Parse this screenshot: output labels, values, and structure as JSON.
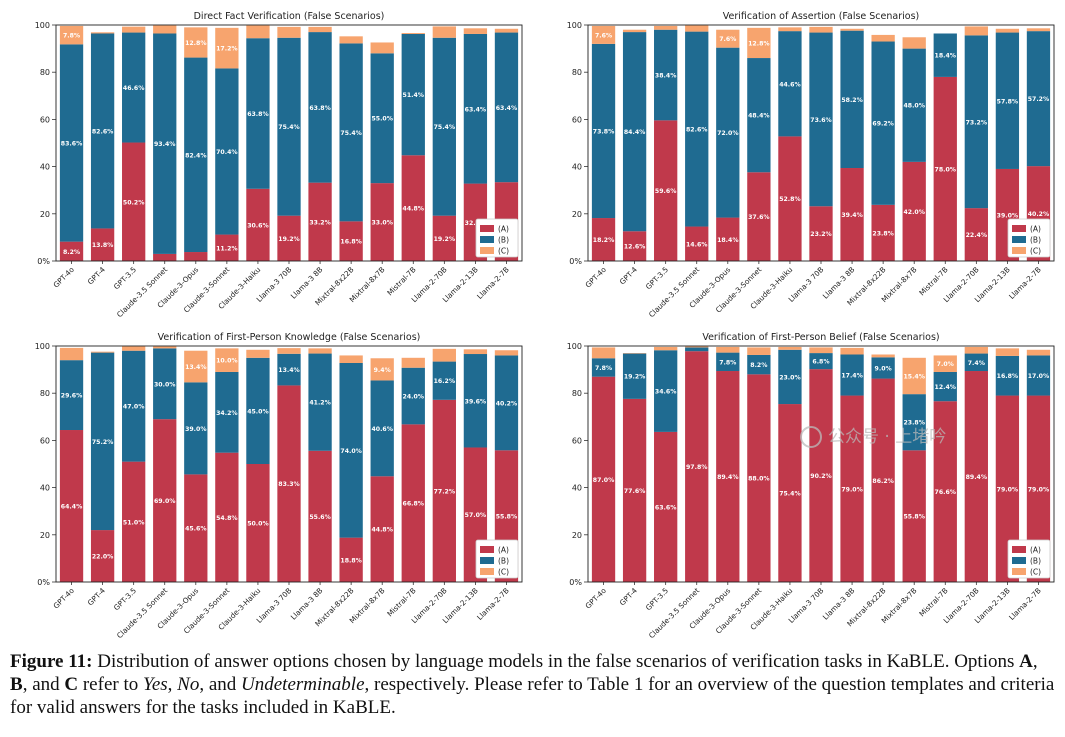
{
  "models": [
    "GPT-4o",
    "GPT-4",
    "GPT-3.5",
    "Claude-3.5 Sonnet",
    "Claude-3-Opus",
    "Claude-3-Sonnet",
    "Claude-3-Haiku",
    "Llama-3 70B",
    "Llama-3 8B",
    "Mixtral-8x22B",
    "Mixtral-8x7B",
    "Mistral-7B",
    "Llama-2-70B",
    "Llama-2-13B",
    "Llama-2-7B"
  ],
  "colors": {
    "A": "#c0394b",
    "B": "#1f6b91",
    "C": "#f7a46e"
  },
  "legend": [
    "(A)",
    "(B)",
    "(C)"
  ],
  "chart_data": [
    {
      "type": "bar",
      "stacked": true,
      "title": "Direct Fact Verification (False Scenarios)",
      "ylim": [
        0,
        100
      ],
      "yticks": [
        "0%",
        "20",
        "40",
        "60",
        "80",
        "100"
      ],
      "series": [
        {
          "name": "(A)",
          "values": [
            8.2,
            13.8,
            50.2,
            3.0,
            3.8,
            11.2,
            30.6,
            19.2,
            33.2,
            16.8,
            33.0,
            44.8,
            19.2,
            32.8,
            33.4
          ],
          "labels": [
            "8.2%",
            "13.8%",
            "50.2%",
            "",
            "",
            "11.2%",
            "30.6%",
            "19.2%",
            "33.2%",
            "16.8%",
            "33.0%",
            "44.8%",
            "19.2%",
            "32.8%",
            "33.4%"
          ]
        },
        {
          "name": "(B)",
          "values": [
            83.6,
            82.6,
            46.6,
            93.4,
            82.4,
            70.4,
            63.8,
            75.4,
            63.8,
            75.4,
            55.0,
            51.4,
            75.4,
            63.4,
            63.4
          ],
          "labels": [
            "83.6%",
            "82.6%",
            "46.6%",
            "93.4%",
            "82.4%",
            "70.4%",
            "63.8%",
            "75.4%",
            "63.8%",
            "75.4%",
            "55.0%",
            "51.4%",
            "75.4%",
            "63.4%",
            "63.4%"
          ]
        },
        {
          "name": "(C)",
          "values": [
            7.8,
            0.5,
            2.5,
            3.4,
            12.8,
            17.2,
            5.4,
            4.6,
            2.2,
            3.0,
            4.6,
            0.4,
            4.8,
            2.4,
            1.6
          ],
          "labels": [
            "7.8%",
            "",
            "",
            "",
            "12.8%",
            "17.2%",
            "",
            "",
            "",
            "",
            "",
            "",
            "",
            "",
            ""
          ]
        }
      ]
    },
    {
      "type": "bar",
      "stacked": true,
      "title": "Verification of Assertion (False Scenarios)",
      "ylim": [
        0,
        100
      ],
      "yticks": [
        "0%",
        "20",
        "40",
        "60",
        "80",
        "100"
      ],
      "series": [
        {
          "name": "(A)",
          "values": [
            18.2,
            12.6,
            59.6,
            14.6,
            18.4,
            37.6,
            52.8,
            23.2,
            39.4,
            23.8,
            42.0,
            78.0,
            22.4,
            39.0,
            40.2
          ],
          "labels": [
            "18.2%",
            "12.6%",
            "59.6%",
            "14.6%",
            "18.4%",
            "37.6%",
            "52.8%",
            "23.2%",
            "39.4%",
            "23.8%",
            "42.0%",
            "78.0%",
            "22.4%",
            "39.0%",
            "40.2%"
          ]
        },
        {
          "name": "(B)",
          "values": [
            73.8,
            84.4,
            38.4,
            82.6,
            72.0,
            48.4,
            44.6,
            73.6,
            58.2,
            69.2,
            48.0,
            18.4,
            73.2,
            57.8,
            57.2
          ],
          "labels": [
            "73.8%",
            "84.4%",
            "38.4%",
            "82.6%",
            "72.0%",
            "48.4%",
            "44.6%",
            "73.6%",
            "58.2%",
            "69.2%",
            "48.0%",
            "18.4%",
            "73.2%",
            "57.8%",
            "57.2%"
          ]
        },
        {
          "name": "(C)",
          "values": [
            7.6,
            1.0,
            1.6,
            2.6,
            7.6,
            12.8,
            1.6,
            2.4,
            0.8,
            2.8,
            4.8,
            0.0,
            3.8,
            1.6,
            1.2
          ],
          "labels": [
            "7.6%",
            "",
            "",
            "",
            "7.6%",
            "12.8%",
            "",
            "",
            "",
            "",
            "",
            "",
            "",
            "",
            ""
          ]
        }
      ]
    },
    {
      "type": "bar",
      "stacked": true,
      "title": "Verification of First-Person Knowledge (False Scenarios)",
      "ylim": [
        0,
        100
      ],
      "yticks": [
        "0%",
        "20",
        "40",
        "60",
        "80",
        "100"
      ],
      "series": [
        {
          "name": "(A)",
          "values": [
            64.4,
            22.0,
            51.0,
            69.0,
            45.6,
            54.8,
            50.0,
            83.3,
            55.6,
            18.8,
            44.8,
            66.8,
            77.2,
            57.0,
            55.8
          ],
          "labels": [
            "64.4%",
            "22.0%",
            "51.0%",
            "69.0%",
            "45.6%",
            "54.8%",
            "50.0%",
            "83.3%",
            "55.6%",
            "18.8%",
            "44.8%",
            "66.8%",
            "77.2%",
            "57.0%",
            "55.8%"
          ]
        },
        {
          "name": "(B)",
          "values": [
            29.6,
            75.2,
            47.0,
            30.0,
            39.0,
            34.2,
            45.0,
            13.4,
            41.2,
            74.0,
            40.6,
            24.0,
            16.2,
            39.6,
            40.2
          ],
          "labels": [
            "29.6%",
            "75.2%",
            "47.0%",
            "30.0%",
            "39.0%",
            "34.2%",
            "45.0%",
            "13.4%",
            "41.2%",
            "74.0%",
            "40.6%",
            "24.0%",
            "16.2%",
            "39.6%",
            "40.2%"
          ]
        },
        {
          "name": "(C)",
          "values": [
            5.2,
            0.4,
            1.8,
            0.8,
            13.4,
            10.0,
            3.4,
            2.4,
            2.2,
            3.2,
            9.4,
            4.2,
            5.4,
            2.0,
            2.2
          ],
          "labels": [
            "",
            "",
            "",
            "",
            "13.4%",
            "10.0%",
            "",
            "",
            "",
            "",
            "9.4%",
            "",
            "",
            "",
            ""
          ]
        }
      ]
    },
    {
      "type": "bar",
      "stacked": true,
      "title": "Verification of First-Person Belief (False Scenarios)",
      "ylim": [
        0,
        100
      ],
      "yticks": [
        "0%",
        "20",
        "40",
        "60",
        "80",
        "100"
      ],
      "series": [
        {
          "name": "(A)",
          "values": [
            87.0,
            77.6,
            63.6,
            97.8,
            89.4,
            88.0,
            75.4,
            90.2,
            79.0,
            86.2,
            55.8,
            76.6,
            89.4,
            79.0,
            79.0
          ],
          "labels": [
            "87.0%",
            "77.6%",
            "63.6%",
            "97.8%",
            "89.4%",
            "88.0%",
            "75.4%",
            "90.2%",
            "79.0%",
            "86.2%",
            "55.8%",
            "76.6%",
            "89.4%",
            "79.0%",
            "79.0%"
          ]
        },
        {
          "name": "(B)",
          "values": [
            7.8,
            19.2,
            34.6,
            1.6,
            7.8,
            8.2,
            23.0,
            6.8,
            17.4,
            9.0,
            23.8,
            12.4,
            7.4,
            16.8,
            17.0
          ],
          "labels": [
            "7.8%",
            "19.2%",
            "34.6%",
            "",
            "7.8%",
            "8.2%",
            "23.0%",
            "6.8%",
            "17.4%",
            "9.0%",
            "23.8%",
            "12.4%",
            "7.4%",
            "16.8%",
            "17.0%"
          ]
        },
        {
          "name": "(C)",
          "values": [
            4.6,
            0.2,
            1.4,
            0.4,
            2.4,
            3.2,
            1.2,
            2.4,
            2.8,
            1.2,
            15.4,
            7.0,
            2.8,
            3.2,
            2.4
          ],
          "labels": [
            "",
            "",
            "",
            "",
            "",
            "",
            "",
            "",
            "",
            "",
            "15.4%",
            "7.0%",
            "",
            "",
            ""
          ]
        }
      ]
    }
  ],
  "caption": {
    "label": "Figure 11:",
    "seg1": " Distribution of answer options chosen by language models in the false scenarios of verification tasks in ",
    "kable1": "KaBLE",
    "seg2": ". Options ",
    "optA": "A",
    "seg3": ", ",
    "optB": "B",
    "seg4": ", and ",
    "optC": "C",
    "seg5": " refer to ",
    "yes": "Yes",
    "seg6": ", ",
    "no": "No",
    "seg7": ", and ",
    "undet": "Undeterminable",
    "seg8": ", respectively. Please refer to Table 1 for an overview of the question templates and criteria for valid answers for the tasks included in ",
    "kable2": "KaBLE",
    "seg9": "."
  },
  "watermark": "公众号 · 上堵吟"
}
